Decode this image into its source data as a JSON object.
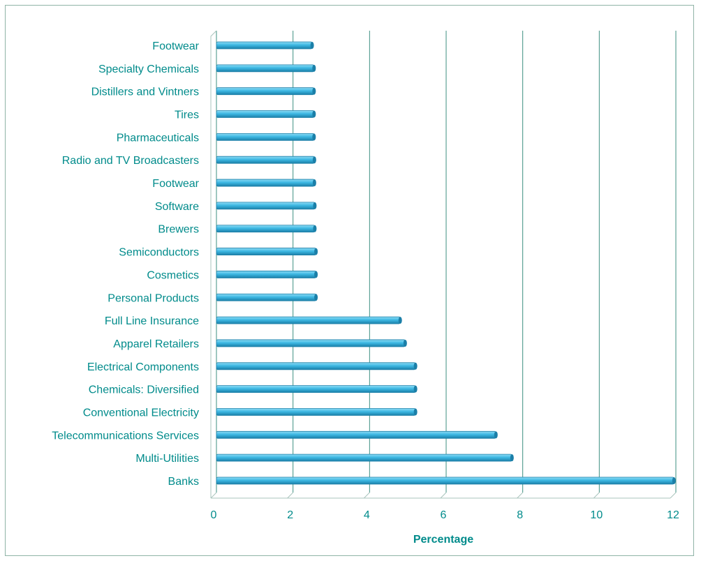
{
  "chart_data": {
    "type": "bar",
    "orientation": "horizontal",
    "categories": [
      "Footwear",
      "Specialty Chemicals",
      "Distillers and Vintners",
      "Tires",
      "Pharmaceuticals",
      "Radio and TV Broadcasters",
      "Footwear",
      "Software",
      "Brewers",
      "Semiconductors",
      "Cosmetics",
      "Personal Products",
      "Full Line Insurance",
      "Apparel Retailers",
      "Electrical Components",
      "Chemicals: Diversified",
      "Conventional Electricity",
      "Telecommunications Services",
      "Multi-Utilities",
      "Banks"
    ],
    "values": [
      2.5,
      2.55,
      2.55,
      2.55,
      2.55,
      2.56,
      2.56,
      2.57,
      2.57,
      2.6,
      2.6,
      2.6,
      4.8,
      4.93,
      5.2,
      5.2,
      5.2,
      7.3,
      7.72,
      11.95
    ],
    "title": "",
    "xlabel": "Percentage",
    "ylabel": "",
    "xlim": [
      0,
      12
    ],
    "xticks": [
      "0",
      "2",
      "4",
      "6",
      "8",
      "10",
      "12"
    ],
    "grid": "vertical",
    "legend": "none",
    "colors": {
      "bar": "#3db8e3",
      "bar_light": "#8fdcf5",
      "bar_dark": "#1b7fa8",
      "grid": "#3e8f80",
      "text": "#008b8b"
    }
  }
}
